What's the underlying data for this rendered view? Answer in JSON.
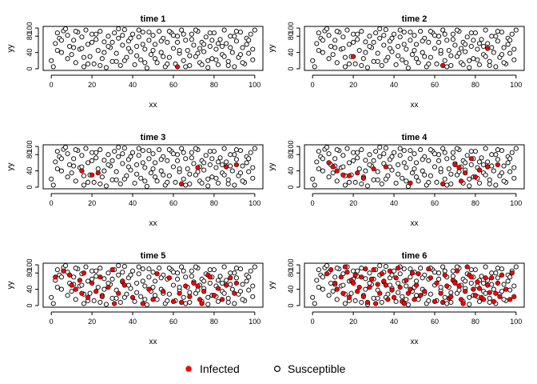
{
  "chart_data": {
    "type": "scatter",
    "layout": {
      "rows": 3,
      "cols": 2
    },
    "xlabel": "xx",
    "ylabel": "yy",
    "xlim": [
      0,
      100
    ],
    "ylim": [
      0,
      100
    ],
    "x_ticks": [
      0,
      20,
      40,
      60,
      80,
      100
    ],
    "y_ticks": [
      0,
      40,
      80,
      100
    ],
    "legend": {
      "position": "bottom",
      "entries": [
        {
          "label": "Infected",
          "marker": "filled-circle",
          "color": "#ff0000"
        },
        {
          "label": "Susceptible",
          "marker": "open-circle",
          "color": "#000000"
        }
      ]
    },
    "colors": {
      "infected": "#ff0000",
      "susceptible": "#ffffff",
      "outline": "#000000"
    },
    "points": [
      [
        0,
        20
      ],
      [
        1,
        5
      ],
      [
        2,
        62
      ],
      [
        3,
        88
      ],
      [
        4,
        75
      ],
      [
        5,
        40
      ],
      [
        6,
        93
      ],
      [
        8,
        82
      ],
      [
        9,
        55
      ],
      [
        10,
        35
      ],
      [
        11,
        70
      ],
      [
        12,
        15
      ],
      [
        13,
        90
      ],
      [
        14,
        48
      ],
      [
        15,
        78
      ],
      [
        16,
        5
      ],
      [
        17,
        95
      ],
      [
        18,
        60
      ],
      [
        19,
        30
      ],
      [
        20,
        85
      ],
      [
        21,
        12
      ],
      [
        22,
        72
      ],
      [
        23,
        45
      ],
      [
        24,
        92
      ],
      [
        25,
        25
      ],
      [
        26,
        66
      ],
      [
        27,
        3
      ],
      [
        28,
        80
      ],
      [
        29,
        52
      ],
      [
        30,
        18
      ],
      [
        31,
        88
      ],
      [
        32,
        38
      ],
      [
        33,
        75
      ],
      [
        34,
        8
      ],
      [
        35,
        58
      ],
      [
        36,
        96
      ],
      [
        37,
        28
      ],
      [
        38,
        68
      ],
      [
        39,
        42
      ],
      [
        40,
        85
      ],
      [
        41,
        10
      ],
      [
        42,
        55
      ],
      [
        43,
        78
      ],
      [
        44,
        22
      ],
      [
        45,
        90
      ],
      [
        46,
        48
      ],
      [
        47,
        2
      ],
      [
        48,
        70
      ],
      [
        49,
        35
      ],
      [
        50,
        82
      ],
      [
        51,
        60
      ],
      [
        52,
        15
      ],
      [
        53,
        92
      ],
      [
        54,
        40
      ],
      [
        55,
        75
      ],
      [
        56,
        5
      ],
      [
        57,
        65
      ],
      [
        58,
        28
      ],
      [
        59,
        88
      ],
      [
        60,
        50
      ],
      [
        61,
        12
      ],
      [
        62,
        80
      ],
      [
        63,
        38
      ],
      [
        64,
        95
      ],
      [
        65,
        20
      ],
      [
        66,
        70
      ],
      [
        67,
        45
      ],
      [
        68,
        8
      ],
      [
        69,
        85
      ],
      [
        70,
        58
      ],
      [
        71,
        30
      ],
      [
        72,
        92
      ],
      [
        73,
        15
      ],
      [
        74,
        65
      ],
      [
        75,
        42
      ],
      [
        76,
        78
      ],
      [
        77,
        3
      ],
      [
        78,
        55
      ],
      [
        79,
        25
      ],
      [
        80,
        88
      ],
      [
        81,
        48
      ],
      [
        82,
        10
      ],
      [
        83,
        72
      ],
      [
        84,
        35
      ],
      [
        85,
        95
      ],
      [
        86,
        62
      ],
      [
        87,
        18
      ],
      [
        88,
        80
      ],
      [
        89,
        40
      ],
      [
        90,
        5
      ],
      [
        91,
        68
      ],
      [
        92,
        28
      ],
      [
        93,
        90
      ],
      [
        94,
        52
      ],
      [
        95,
        12
      ],
      [
        96,
        75
      ],
      [
        97,
        38
      ],
      [
        98,
        85
      ],
      [
        99,
        22
      ],
      [
        100,
        95
      ],
      [
        5,
        70
      ],
      [
        8,
        25
      ],
      [
        12,
        92
      ],
      [
        15,
        50
      ],
      [
        18,
        12
      ],
      [
        22,
        85
      ],
      [
        26,
        40
      ],
      [
        30,
        65
      ],
      [
        33,
        98
      ],
      [
        36,
        20
      ],
      [
        39,
        75
      ],
      [
        42,
        32
      ],
      [
        45,
        60
      ],
      [
        48,
        90
      ],
      [
        51,
        25
      ],
      [
        54,
        68
      ],
      [
        57,
        12
      ],
      [
        60,
        82
      ],
      [
        63,
        45
      ],
      [
        66,
        5
      ],
      [
        69,
        72
      ],
      [
        72,
        38
      ],
      [
        75,
        60
      ],
      [
        78,
        88
      ],
      [
        81,
        22
      ],
      [
        84,
        55
      ],
      [
        87,
        8
      ],
      [
        90,
        80
      ],
      [
        93,
        35
      ],
      [
        96,
        60
      ],
      [
        3,
        45
      ],
      [
        7,
        98
      ],
      [
        11,
        52
      ],
      [
        16,
        28
      ],
      [
        20,
        65
      ],
      [
        24,
        8
      ],
      [
        28,
        55
      ],
      [
        32,
        18
      ],
      [
        35,
        82
      ],
      [
        38,
        50
      ],
      [
        43,
        95
      ],
      [
        46,
        15
      ],
      [
        50,
        45
      ],
      [
        55,
        30
      ],
      [
        58,
        92
      ],
      [
        62,
        65
      ],
      [
        65,
        85
      ],
      [
        68,
        32
      ],
      [
        71,
        95
      ],
      [
        73,
        50
      ],
      [
        77,
        20
      ],
      [
        79,
        70
      ],
      [
        82,
        62
      ],
      [
        85,
        30
      ],
      [
        88,
        52
      ],
      [
        91,
        92
      ],
      [
        94,
        15
      ],
      [
        97,
        70
      ],
      [
        99,
        48
      ],
      [
        74,
        10
      ]
    ],
    "panels": [
      {
        "title": "time  1",
        "infected": [
          [
            62,
            5
          ]
        ]
      },
      {
        "title": "time  2",
        "infected": [
          [
            20,
            30
          ],
          [
            64,
            8
          ],
          [
            86,
            50
          ]
        ]
      },
      {
        "title": "time  3",
        "infected": [
          [
            15,
            40
          ],
          [
            20,
            30
          ],
          [
            23,
            35
          ],
          [
            64,
            8
          ],
          [
            72,
            48
          ],
          [
            86,
            50
          ],
          [
            91,
            55
          ]
        ]
      },
      {
        "title": "time  4",
        "infected": [
          [
            8,
            60
          ],
          [
            10,
            50
          ],
          [
            12,
            40
          ],
          [
            15,
            30
          ],
          [
            18,
            28
          ],
          [
            22,
            35
          ],
          [
            25,
            22
          ],
          [
            30,
            45
          ],
          [
            36,
            50
          ],
          [
            48,
            10
          ],
          [
            64,
            8
          ],
          [
            70,
            55
          ],
          [
            72,
            48
          ],
          [
            75,
            35
          ],
          [
            78,
            70
          ],
          [
            80,
            25
          ],
          [
            82,
            42
          ],
          [
            86,
            50
          ],
          [
            91,
            55
          ],
          [
            73,
            15
          ]
        ]
      },
      {
        "title": "time  5",
        "infected": [
          [
            2,
            70
          ],
          [
            6,
            85
          ],
          [
            9,
            75
          ],
          [
            10,
            50
          ],
          [
            12,
            40
          ],
          [
            14,
            62
          ],
          [
            15,
            30
          ],
          [
            16,
            80
          ],
          [
            18,
            20
          ],
          [
            20,
            55
          ],
          [
            22,
            35
          ],
          [
            24,
            70
          ],
          [
            25,
            22
          ],
          [
            28,
            45
          ],
          [
            30,
            88
          ],
          [
            31,
            5
          ],
          [
            33,
            30
          ],
          [
            35,
            60
          ],
          [
            36,
            50
          ],
          [
            40,
            20
          ],
          [
            45,
            5
          ],
          [
            48,
            40
          ],
          [
            50,
            15
          ],
          [
            52,
            78
          ],
          [
            55,
            35
          ],
          [
            58,
            68
          ],
          [
            60,
            10
          ],
          [
            63,
            30
          ],
          [
            64,
            8
          ],
          [
            66,
            48
          ],
          [
            68,
            22
          ],
          [
            70,
            55
          ],
          [
            72,
            48
          ],
          [
            74,
            5
          ],
          [
            75,
            35
          ],
          [
            77,
            75
          ],
          [
            78,
            70
          ],
          [
            80,
            25
          ],
          [
            82,
            42
          ],
          [
            84,
            15
          ],
          [
            86,
            50
          ],
          [
            88,
            68
          ],
          [
            90,
            30
          ],
          [
            91,
            55
          ],
          [
            73,
            15
          ]
        ]
      },
      {
        "title": "time  6",
        "infected": [
          [
            7,
            78
          ],
          [
            9,
            88
          ],
          [
            11,
            55
          ],
          [
            12,
            40
          ],
          [
            14,
            70
          ],
          [
            15,
            30
          ],
          [
            16,
            95
          ],
          [
            17,
            82
          ],
          [
            18,
            20
          ],
          [
            19,
            62
          ],
          [
            20,
            55
          ],
          [
            21,
            75
          ],
          [
            22,
            35
          ],
          [
            23,
            45
          ],
          [
            24,
            70
          ],
          [
            25,
            22
          ],
          [
            26,
            90
          ],
          [
            27,
            8
          ],
          [
            28,
            45
          ],
          [
            29,
            65
          ],
          [
            30,
            88
          ],
          [
            31,
            5
          ],
          [
            32,
            52
          ],
          [
            33,
            30
          ],
          [
            34,
            78
          ],
          [
            35,
            60
          ],
          [
            36,
            50
          ],
          [
            37,
            15
          ],
          [
            38,
            85
          ],
          [
            39,
            38
          ],
          [
            40,
            20
          ],
          [
            41,
            68
          ],
          [
            42,
            92
          ],
          [
            43,
            45
          ],
          [
            44,
            10
          ],
          [
            45,
            5
          ],
          [
            46,
            62
          ],
          [
            47,
            30
          ],
          [
            48,
            40
          ],
          [
            49,
            80
          ],
          [
            50,
            15
          ],
          [
            51,
            50
          ],
          [
            52,
            78
          ],
          [
            53,
            25
          ],
          [
            55,
            35
          ],
          [
            57,
            90
          ],
          [
            58,
            68
          ],
          [
            60,
            10
          ],
          [
            61,
            55
          ],
          [
            63,
            30
          ],
          [
            64,
            8
          ],
          [
            65,
            75
          ],
          [
            66,
            48
          ],
          [
            67,
            18
          ],
          [
            68,
            22
          ],
          [
            69,
            62
          ],
          [
            70,
            55
          ],
          [
            71,
            85
          ],
          [
            72,
            48
          ],
          [
            73,
            15
          ],
          [
            74,
            5
          ],
          [
            75,
            35
          ],
          [
            76,
            95
          ],
          [
            77,
            75
          ],
          [
            78,
            70
          ],
          [
            79,
            40
          ],
          [
            80,
            25
          ],
          [
            81,
            58
          ],
          [
            82,
            42
          ],
          [
            83,
            20
          ],
          [
            84,
            15
          ],
          [
            85,
            68
          ],
          [
            86,
            50
          ],
          [
            87,
            32
          ],
          [
            88,
            68
          ],
          [
            89,
            10
          ],
          [
            90,
            30
          ],
          [
            91,
            55
          ],
          [
            92,
            22
          ],
          [
            93,
            75
          ],
          [
            95,
            40
          ],
          [
            97,
            15
          ],
          [
            98,
            80
          ],
          [
            99,
            22
          ]
        ]
      }
    ]
  }
}
